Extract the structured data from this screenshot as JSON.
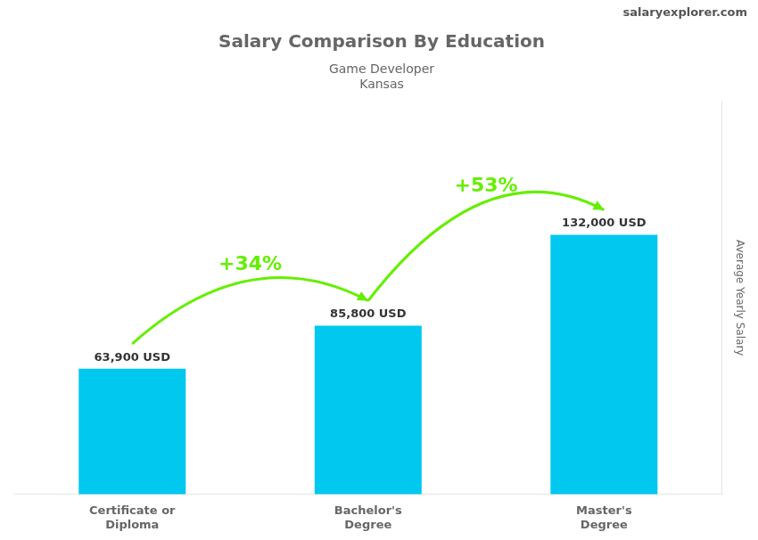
{
  "chart_data": {
    "type": "bar",
    "title": "Salary Comparison By Education",
    "subtitle": [
      "Game Developer",
      "Kansas"
    ],
    "source": "salaryexplorer.com",
    "ylabel": "Average Yearly Salary",
    "categories": [
      "Certificate or\nDiploma",
      "Bachelor's\nDegree",
      "Master's\nDegree"
    ],
    "values": [
      63900,
      85800,
      132000
    ],
    "value_labels": [
      "63,900 USD",
      "85,800 USD",
      "132,000 USD"
    ],
    "data_labels": true,
    "color": "#00c8ee",
    "annotations": [
      {
        "text": "+34%",
        "color": "#66ee00"
      },
      {
        "text": "+53%",
        "color": "#66ee00"
      }
    ],
    "ylim": [
      0,
      200000
    ],
    "tick_labels": "x",
    "grid": false
  }
}
